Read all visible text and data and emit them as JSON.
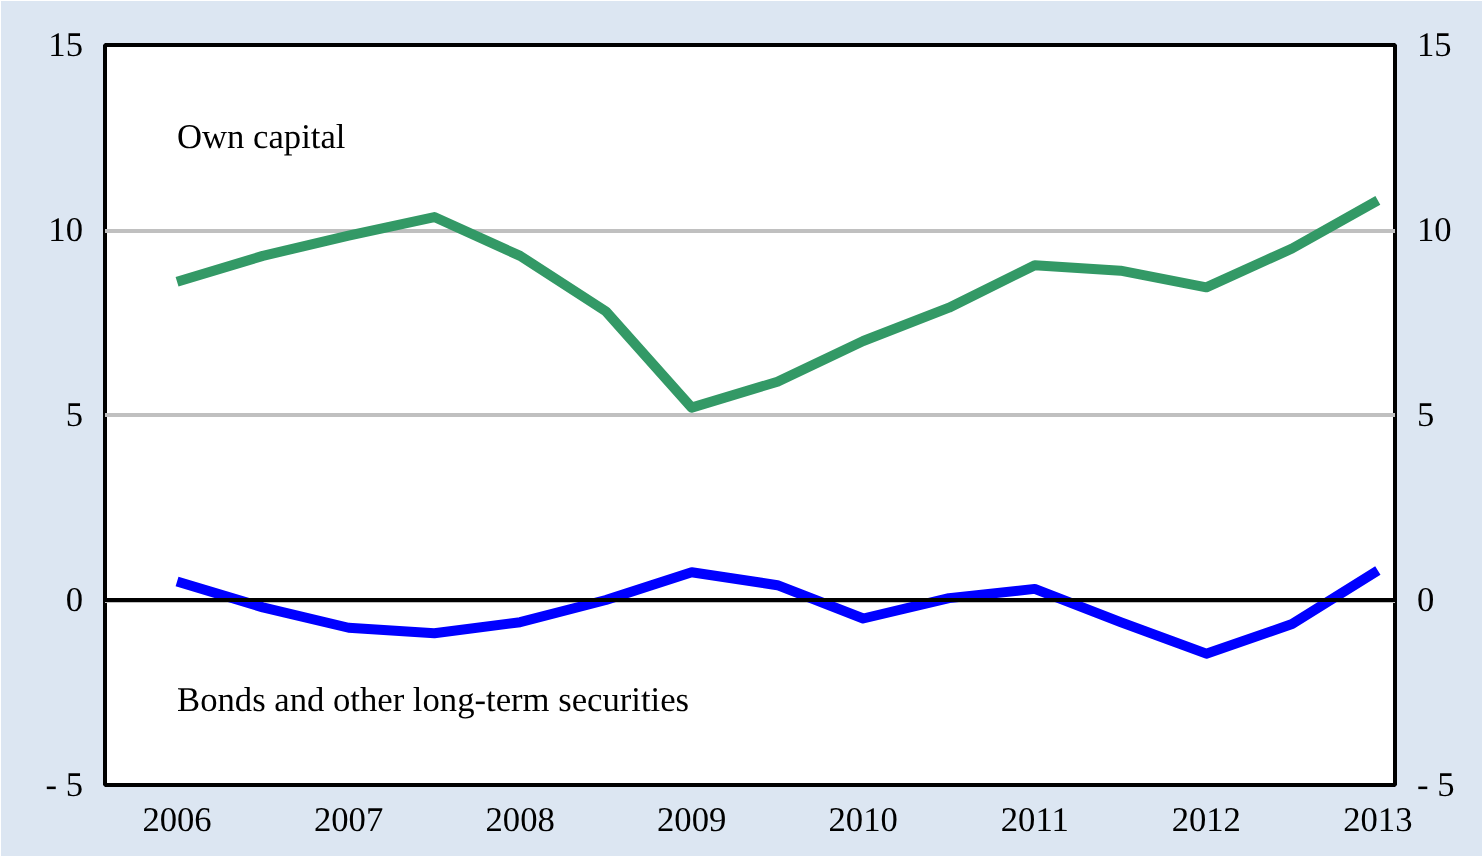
{
  "chart_data": {
    "type": "line",
    "x": [
      2006,
      2006.5,
      2007,
      2007.5,
      2008,
      2008.5,
      2009,
      2009.5,
      2010,
      2010.5,
      2011,
      2011.5,
      2012,
      2012.5,
      2013
    ],
    "series": [
      {
        "name": "Own capital",
        "color": "#339966",
        "values": [
          8.6,
          9.3,
          9.85,
          10.35,
          9.3,
          7.8,
          5.2,
          5.9,
          7.0,
          7.9,
          9.05,
          8.9,
          8.45,
          9.5,
          10.8
        ]
      },
      {
        "name": "Bonds and other long-term securities",
        "color": "#0000ff",
        "values": [
          0.5,
          -0.2,
          -0.75,
          -0.9,
          -0.6,
          0.0,
          0.75,
          0.4,
          -0.5,
          0.05,
          0.3,
          -0.6,
          -1.45,
          -0.65,
          0.8
        ]
      }
    ],
    "xlim": [
      2005.58,
      2013.1
    ],
    "xticks": [
      2006,
      2007,
      2008,
      2009,
      2010,
      2011,
      2012,
      2013
    ],
    "ylim": [
      -5,
      15
    ],
    "yticks": [
      {
        "value": -5,
        "label": "- 5"
      },
      0,
      5,
      10,
      15
    ],
    "y2lim": [
      -5,
      15
    ],
    "y2ticks": [
      {
        "value": -5,
        "label": "- 5"
      },
      0,
      5,
      10,
      15
    ],
    "ref_lines": [
      {
        "axis": "y",
        "value": 0,
        "color": "#000000"
      }
    ],
    "grid": "y",
    "marker": "none",
    "line_style": "solid"
  }
}
